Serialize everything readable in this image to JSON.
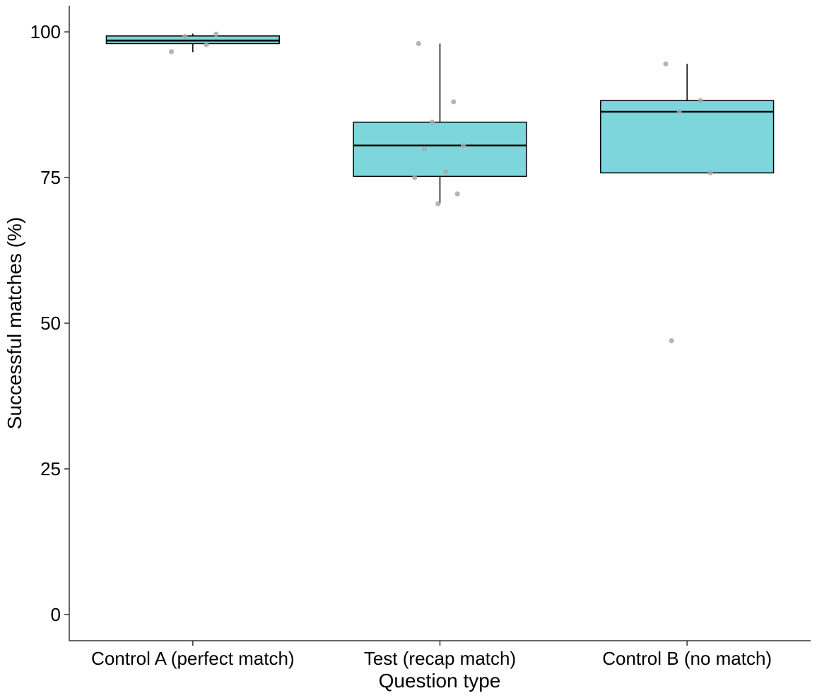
{
  "chart_data": {
    "type": "box",
    "xlabel": "Question type",
    "ylabel": "Successful matches (%)",
    "ylim": [
      -4.5,
      104.5
    ],
    "yticks": [
      0,
      25,
      50,
      75,
      100
    ],
    "grid": false,
    "colors": {
      "box_fill": "#7ed6dd",
      "points": "#a9a9a9"
    },
    "groups": [
      {
        "label": "Control A (perfect match)",
        "whisker_low": 96.5,
        "q1": 98.0,
        "median": 98.5,
        "q3": 99.3,
        "whisker_high": 99.7,
        "points": [
          96.6,
          97.8,
          99.2,
          99.6
        ]
      },
      {
        "label": "Test (recap match)",
        "whisker_low": 70.5,
        "q1": 75.2,
        "median": 80.5,
        "q3": 84.5,
        "whisker_high": 98.0,
        "points": [
          98.0,
          88.0,
          84.5,
          80.5,
          80.0,
          76.0,
          75.0,
          72.2,
          70.5
        ]
      },
      {
        "label": "Control B (no match)",
        "whisker_low": 75.8,
        "q1": 75.8,
        "median": 86.3,
        "q3": 88.2,
        "whisker_high": 94.5,
        "points": [
          94.5,
          88.2,
          86.3,
          75.8,
          47.0
        ]
      }
    ]
  }
}
